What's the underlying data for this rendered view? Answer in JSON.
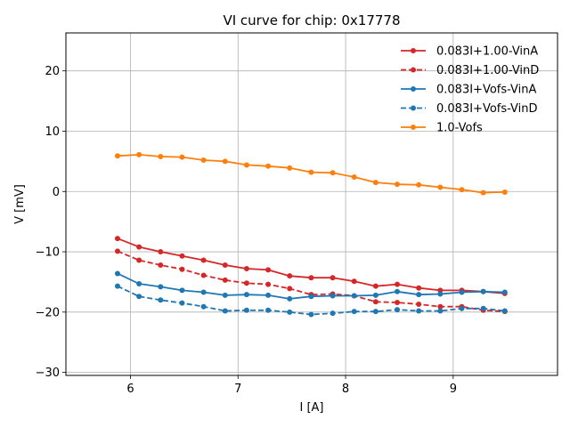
{
  "chart_data": {
    "type": "line",
    "title": "VI curve for chip: 0x17778",
    "xlabel": "I [A]",
    "ylabel": "V [mV]",
    "xlim": [
      5.4,
      9.97
    ],
    "ylim": [
      -30.5,
      26.3
    ],
    "xticks": [
      6,
      7,
      8,
      9
    ],
    "yticks": [
      -30,
      -20,
      -10,
      0,
      10,
      20
    ],
    "grid": true,
    "legend_position": "top-right",
    "x": [
      5.88,
      6.08,
      6.28,
      6.48,
      6.68,
      6.88,
      7.08,
      7.28,
      7.48,
      7.68,
      7.88,
      8.08,
      8.28,
      8.48,
      8.68,
      8.88,
      9.08,
      9.28,
      9.48
    ],
    "series": [
      {
        "name": "0.083I+1.00-VinA",
        "color": "#d62728",
        "dash": "solid",
        "values": [
          -7.8,
          -9.2,
          -10.0,
          -10.7,
          -11.4,
          -12.2,
          -12.8,
          -13.0,
          -14.0,
          -14.3,
          -14.3,
          -14.9,
          -15.7,
          -15.4,
          -16.0,
          -16.4,
          -16.4,
          -16.6,
          -16.9
        ]
      },
      {
        "name": "0.083I+1.00-VinD",
        "color": "#d62728",
        "dash": "dashed",
        "values": [
          -9.9,
          -11.4,
          -12.2,
          -12.9,
          -13.9,
          -14.7,
          -15.2,
          -15.4,
          -16.1,
          -17.1,
          -17.0,
          -17.3,
          -18.3,
          -18.4,
          -18.7,
          -19.1,
          -19.1,
          -19.7,
          -19.9
        ]
      },
      {
        "name": "0.083I+Vofs-VinA",
        "color": "#1f77b4",
        "dash": "solid",
        "values": [
          -13.6,
          -15.3,
          -15.8,
          -16.4,
          -16.7,
          -17.2,
          -17.1,
          -17.2,
          -17.8,
          -17.4,
          -17.3,
          -17.3,
          -17.2,
          -16.6,
          -17.1,
          -17.0,
          -16.7,
          -16.6,
          -16.7
        ]
      },
      {
        "name": "0.083I+Vofs-VinD",
        "color": "#1f77b4",
        "dash": "dashed",
        "values": [
          -15.7,
          -17.4,
          -18.0,
          -18.5,
          -19.1,
          -19.8,
          -19.7,
          -19.7,
          -20.0,
          -20.4,
          -20.2,
          -19.9,
          -19.9,
          -19.6,
          -19.8,
          -19.8,
          -19.4,
          -19.4,
          -19.8
        ]
      },
      {
        "name": "1.0-Vofs",
        "color": "#ff7f0e",
        "dash": "solid",
        "values": [
          5.9,
          6.1,
          5.8,
          5.7,
          5.2,
          5.0,
          4.4,
          4.2,
          3.9,
          3.2,
          3.1,
          2.4,
          1.5,
          1.2,
          1.1,
          0.7,
          0.3,
          -0.2,
          -0.1
        ]
      }
    ]
  }
}
